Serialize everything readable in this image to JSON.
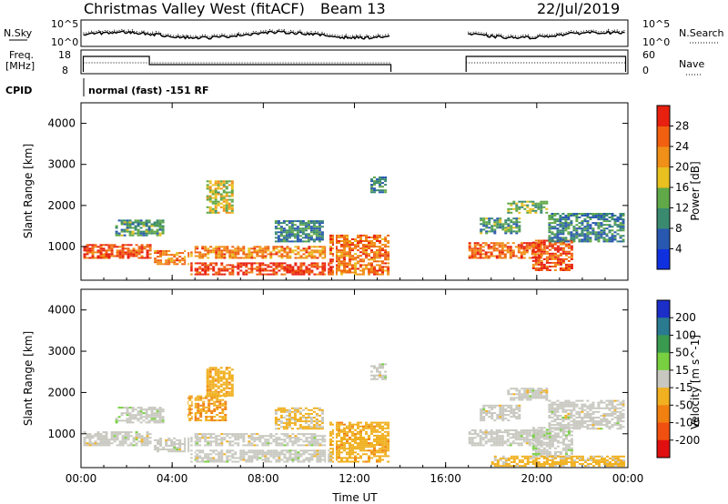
{
  "title": {
    "site": "Christmas Valley West (fitACF)",
    "beam": "Beam 13",
    "date": "22/Jul/2019"
  },
  "header_panels": {
    "nsky": {
      "label": "N.Sky",
      "ticks": [
        "10^5",
        "10^0"
      ],
      "right_label": "N.Search",
      "right_ticks": [
        "10^5",
        "10^0"
      ]
    },
    "freq": {
      "label_line1": "Freq.",
      "label_line2": "[MHz]",
      "ticks": [
        "18",
        "8"
      ],
      "right_label": "Nave",
      "right_ticks": [
        "60",
        "0"
      ]
    },
    "cpid": {
      "label": "CPID",
      "text": "normal (fast) -151 RF"
    }
  },
  "chart_data": [
    {
      "type": "heatmap",
      "name": "power",
      "ylabel": "Slant Range [km]",
      "xlabel": "",
      "xlim": [
        0,
        24
      ],
      "ylim": [
        180,
        4500
      ],
      "x_ticks": [
        "00:00",
        "04:00",
        "08:00",
        "12:00",
        "16:00",
        "20:00",
        "00:00"
      ],
      "y_ticks": [
        "1000",
        "2000",
        "3000",
        "4000"
      ],
      "colorbar": {
        "label": "Power [dB]",
        "ticks": [
          "4",
          "8",
          "12",
          "16",
          "20",
          "24",
          "28"
        ],
        "range": [
          0,
          30
        ],
        "colors": [
          "#1030e0",
          "#2858b0",
          "#3a8a70",
          "#60a848",
          "#e8c020",
          "#f09018",
          "#f06010",
          "#e82010"
        ]
      },
      "data_gap_hours": [
        13.6,
        16.9
      ],
      "regions": [
        {
          "t0": 0.1,
          "t1": 3.1,
          "r0": 700,
          "r1": 1050,
          "power": 25
        },
        {
          "t0": 1.5,
          "t1": 3.6,
          "r0": 1250,
          "r1": 1650,
          "power": 11
        },
        {
          "t0": 3.2,
          "t1": 4.7,
          "r0": 550,
          "r1": 900,
          "power": 22
        },
        {
          "t0": 4.8,
          "t1": 10.7,
          "r0": 700,
          "r1": 1000,
          "power": 22
        },
        {
          "t0": 4.8,
          "t1": 11.0,
          "r0": 300,
          "r1": 600,
          "power": 27
        },
        {
          "t0": 5.5,
          "t1": 6.6,
          "r0": 1800,
          "r1": 2600,
          "power": 16
        },
        {
          "t0": 8.5,
          "t1": 10.6,
          "r0": 1100,
          "r1": 1600,
          "power": 9
        },
        {
          "t0": 10.9,
          "t1": 13.5,
          "r0": 300,
          "r1": 1250,
          "power": 23
        },
        {
          "t0": 12.7,
          "t1": 13.4,
          "r0": 2300,
          "r1": 2700,
          "power": 9
        },
        {
          "t0": 17.0,
          "t1": 20.2,
          "r0": 700,
          "r1": 1100,
          "power": 24
        },
        {
          "t0": 17.5,
          "t1": 19.3,
          "r0": 1300,
          "r1": 1700,
          "power": 11
        },
        {
          "t0": 18.7,
          "t1": 20.5,
          "r0": 1800,
          "r1": 2100,
          "power": 13
        },
        {
          "t0": 19.8,
          "t1": 21.6,
          "r0": 400,
          "r1": 1150,
          "power": 26
        },
        {
          "t0": 20.5,
          "t1": 23.8,
          "r0": 1100,
          "r1": 1800,
          "power": 9
        }
      ]
    },
    {
      "type": "heatmap",
      "name": "velocity",
      "ylabel": "Slant Range [km]",
      "xlabel": "Time UT",
      "xlim": [
        0,
        24
      ],
      "ylim": [
        180,
        4500
      ],
      "x_ticks": [
        "00:00",
        "04:00",
        "08:00",
        "12:00",
        "16:00",
        "20:00",
        "00:00"
      ],
      "y_ticks": [
        "1000",
        "2000",
        "3000",
        "4000"
      ],
      "colorbar": {
        "label": "Velocity [m s^-1]",
        "ticks": [
          "200",
          "100",
          "50",
          "15",
          "-15",
          "-50",
          "-100",
          "-200"
        ],
        "range": [
          -250,
          250
        ],
        "colors": [
          "#1c2ec8",
          "#2a7a90",
          "#3a9a50",
          "#78d040",
          "#c8c8c0",
          "#f0b020",
          "#f08010",
          "#f05010",
          "#e01010"
        ]
      },
      "data_gap_hours": [
        13.6,
        16.9
      ],
      "regions": [
        {
          "t0": 0.1,
          "t1": 3.1,
          "r0": 700,
          "r1": 1050,
          "velocity": 0
        },
        {
          "t0": 1.5,
          "t1": 3.6,
          "r0": 1250,
          "r1": 1650,
          "velocity": 5
        },
        {
          "t0": 3.2,
          "t1": 4.7,
          "r0": 550,
          "r1": 900,
          "velocity": 0
        },
        {
          "t0": 4.8,
          "t1": 10.7,
          "r0": 700,
          "r1": 1000,
          "velocity": 0
        },
        {
          "t0": 4.8,
          "t1": 11.0,
          "r0": 300,
          "r1": 600,
          "velocity": 0
        },
        {
          "t0": 4.6,
          "t1": 6.4,
          "r0": 1300,
          "r1": 1900,
          "velocity": -80
        },
        {
          "t0": 5.5,
          "t1": 6.6,
          "r0": 1900,
          "r1": 2600,
          "velocity": -60
        },
        {
          "t0": 8.5,
          "t1": 10.6,
          "r0": 1100,
          "r1": 1600,
          "velocity": -40
        },
        {
          "t0": 10.9,
          "t1": 13.5,
          "r0": 300,
          "r1": 1250,
          "velocity": -60
        },
        {
          "t0": 12.7,
          "t1": 13.4,
          "r0": 2300,
          "r1": 2700,
          "velocity": 0
        },
        {
          "t0": 17.0,
          "t1": 20.2,
          "r0": 700,
          "r1": 1100,
          "velocity": 0
        },
        {
          "t0": 17.5,
          "t1": 19.3,
          "r0": 1300,
          "r1": 1700,
          "velocity": 0
        },
        {
          "t0": 18.7,
          "t1": 20.5,
          "r0": 1800,
          "r1": 2100,
          "velocity": 0
        },
        {
          "t0": 19.8,
          "t1": 21.6,
          "r0": 400,
          "r1": 1150,
          "velocity": 5
        },
        {
          "t0": 20.5,
          "t1": 23.8,
          "r0": 1100,
          "r1": 1800,
          "velocity": 0
        },
        {
          "t0": 18.0,
          "t1": 23.8,
          "r0": 200,
          "r1": 450,
          "velocity": -50
        }
      ]
    }
  ]
}
